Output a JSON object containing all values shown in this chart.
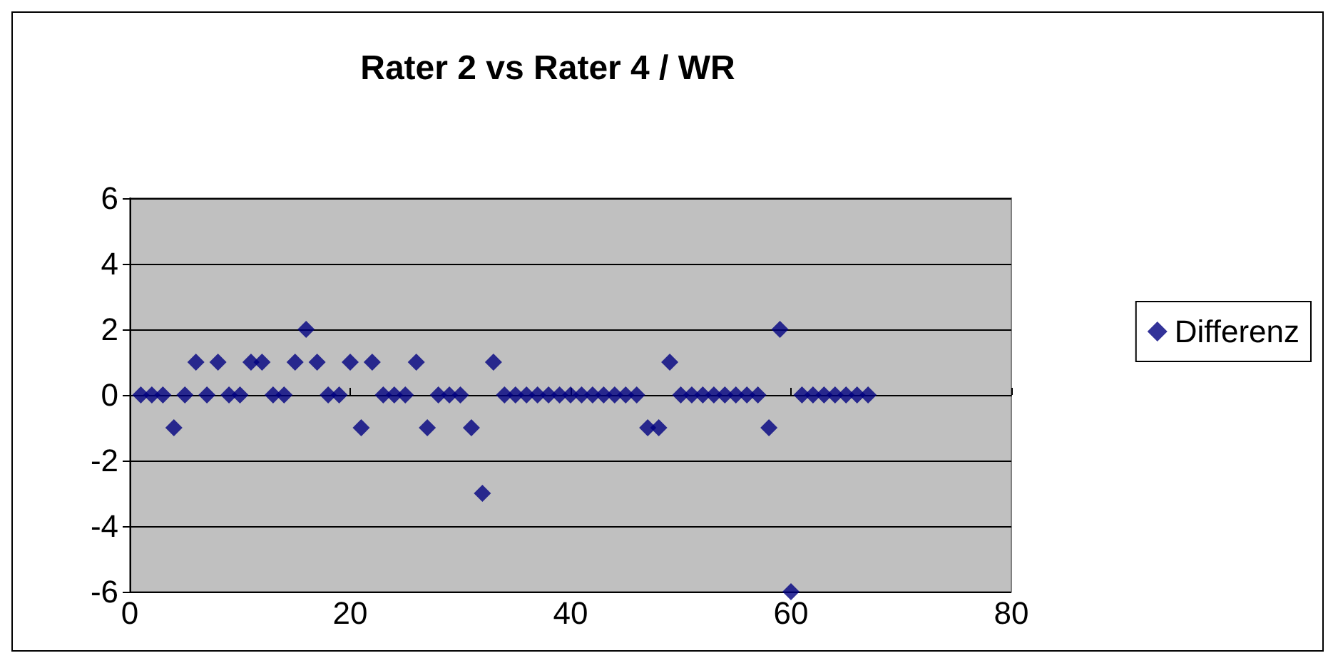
{
  "chart_data": {
    "type": "scatter",
    "title": "Rater 2 vs Rater 4 / WR",
    "x": [
      1,
      2,
      3,
      4,
      5,
      6,
      7,
      8,
      9,
      10,
      11,
      12,
      13,
      14,
      15,
      16,
      17,
      18,
      19,
      20,
      21,
      22,
      23,
      24,
      25,
      26,
      27,
      28,
      29,
      30,
      31,
      32,
      33,
      34,
      35,
      36,
      37,
      38,
      39,
      40,
      41,
      42,
      43,
      44,
      45,
      46,
      47,
      48,
      49,
      50,
      51,
      52,
      53,
      54,
      55,
      56,
      57,
      58,
      59,
      60,
      61,
      62,
      63,
      64,
      65,
      66,
      67
    ],
    "series": [
      {
        "name": "Differenz",
        "color": "#000080",
        "values": [
          0,
          0,
          0,
          -1,
          0,
          1,
          0,
          1,
          0,
          0,
          1,
          1,
          0,
          0,
          1,
          2,
          1,
          0,
          0,
          1,
          -1,
          1,
          0,
          0,
          0,
          1,
          -1,
          0,
          0,
          0,
          -1,
          -3,
          1,
          0,
          0,
          0,
          0,
          0,
          0,
          0,
          0,
          0,
          0,
          0,
          0,
          0,
          -1,
          -1,
          1,
          0,
          0,
          0,
          0,
          0,
          0,
          0,
          0,
          -1,
          2,
          -6,
          0,
          0,
          0,
          0,
          0,
          0,
          0
        ]
      }
    ],
    "xlim": [
      0,
      80
    ],
    "xticks": [
      0,
      20,
      40,
      60,
      80
    ],
    "ylim": [
      -6,
      6
    ],
    "yticks": [
      -6,
      -4,
      -2,
      0,
      2,
      4,
      6
    ],
    "grid": "y",
    "legend": "right",
    "marker": "diamond"
  }
}
